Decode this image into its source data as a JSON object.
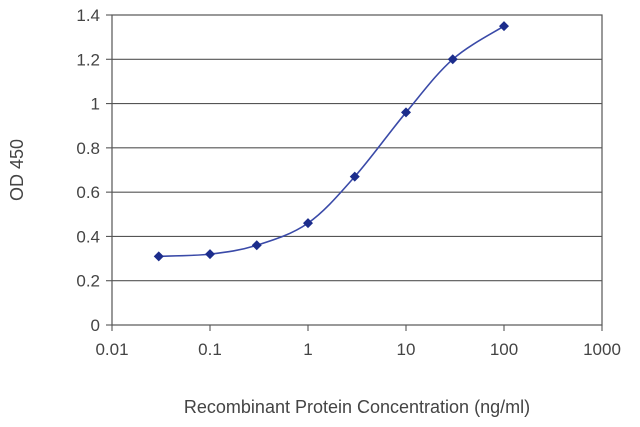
{
  "chart_data": {
    "type": "line",
    "xlabel": "Recombinant Protein Concentration (ng/ml)",
    "ylabel": "OD 450",
    "x_scale": "log",
    "xlim": [
      0.01,
      1000
    ],
    "ylim": [
      0,
      1.4
    ],
    "x_ticks": [
      "0.01",
      "0.1",
      "1",
      "10",
      "100",
      "1000"
    ],
    "y_ticks": [
      "0",
      "0.2",
      "0.4",
      "0.6",
      "0.8",
      "1",
      "1.2",
      "1.4"
    ],
    "grid": "horizontal",
    "series": [
      {
        "x": [
          0.03,
          0.1,
          0.3,
          1,
          3,
          10,
          30,
          100
        ],
        "y": [
          0.31,
          0.32,
          0.36,
          0.46,
          0.67,
          0.96,
          1.2,
          1.35
        ]
      }
    ],
    "colors": {
      "series": "#1c2d8c",
      "curve": "#3a4aa8",
      "grid": "#555555",
      "axis": "#555555"
    }
  }
}
